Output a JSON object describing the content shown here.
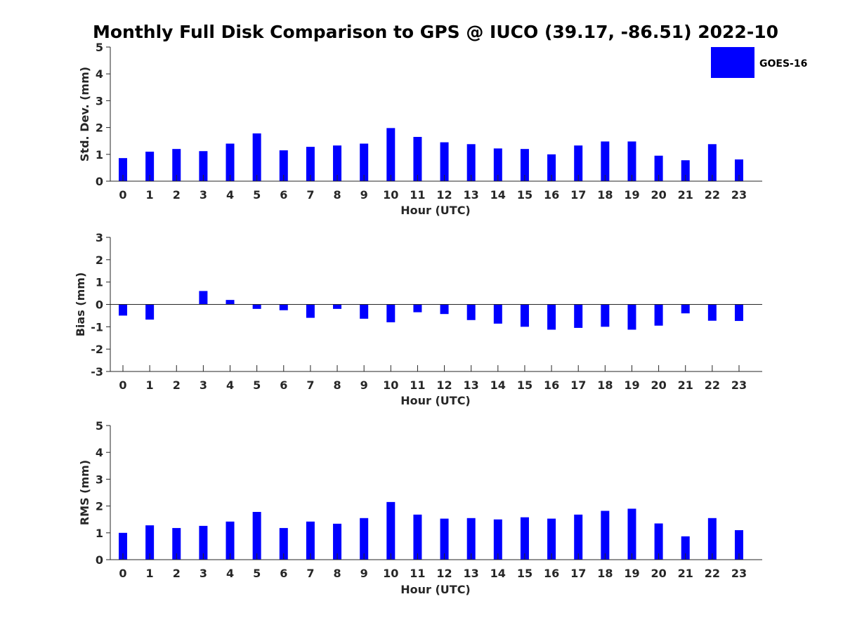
{
  "chart_data": {
    "title": "Monthly Full Disk Comparison to GPS @ IUCO (39.17, -86.51) 2022-10",
    "legend": {
      "entries": [
        "GOES-16"
      ],
      "placement": "top-right",
      "color": "#0000ff"
    },
    "bar_color": "#0000ff",
    "panels": [
      {
        "type": "bar",
        "xlabel": "Hour (UTC)",
        "ylabel": "Std. Dev. (mm)",
        "ylim": [
          0,
          5
        ],
        "yticks": [
          0,
          1,
          2,
          3,
          4,
          5
        ],
        "categories": [
          "0",
          "1",
          "2",
          "3",
          "4",
          "5",
          "6",
          "7",
          "8",
          "9",
          "10",
          "11",
          "12",
          "13",
          "14",
          "15",
          "16",
          "17",
          "18",
          "19",
          "20",
          "21",
          "22",
          "23"
        ],
        "series": [
          {
            "name": "GOES-16",
            "values": [
              0.86,
              1.1,
              1.2,
              1.12,
              1.4,
              1.78,
              1.15,
              1.28,
              1.33,
              1.4,
              1.98,
              1.65,
              1.45,
              1.38,
              1.22,
              1.2,
              1.0,
              1.33,
              1.48,
              1.48,
              0.95,
              0.78,
              1.38,
              0.81
            ]
          }
        ]
      },
      {
        "type": "bar",
        "xlabel": "Hour (UTC)",
        "ylabel": "Bias (mm)",
        "ylim": [
          -3,
          3
        ],
        "yticks": [
          -3,
          -2,
          -1,
          0,
          1,
          2,
          3
        ],
        "categories": [
          "0",
          "1",
          "2",
          "3",
          "4",
          "5",
          "6",
          "7",
          "8",
          "9",
          "10",
          "11",
          "12",
          "13",
          "14",
          "15",
          "16",
          "17",
          "18",
          "19",
          "20",
          "21",
          "22",
          "23"
        ],
        "series": [
          {
            "name": "GOES-16",
            "values": [
              -0.5,
              -0.68,
              0.0,
              0.6,
              0.2,
              -0.2,
              -0.26,
              -0.6,
              -0.2,
              -0.64,
              -0.8,
              -0.35,
              -0.43,
              -0.7,
              -0.86,
              -1.0,
              -1.13,
              -1.05,
              -1.0,
              -1.13,
              -0.95,
              -0.4,
              -0.73,
              -0.74
            ]
          }
        ]
      },
      {
        "type": "bar",
        "xlabel": "Hour (UTC)",
        "ylabel": "RMS (mm)",
        "ylim": [
          0,
          5
        ],
        "yticks": [
          0,
          1,
          2,
          3,
          4,
          5
        ],
        "categories": [
          "0",
          "1",
          "2",
          "3",
          "4",
          "5",
          "6",
          "7",
          "8",
          "9",
          "10",
          "11",
          "12",
          "13",
          "14",
          "15",
          "16",
          "17",
          "18",
          "19",
          "20",
          "21",
          "22",
          "23"
        ],
        "series": [
          {
            "name": "GOES-16",
            "values": [
              1.0,
              1.28,
              1.18,
              1.26,
              1.42,
              1.78,
              1.18,
              1.42,
              1.34,
              1.55,
              2.15,
              1.68,
              1.53,
              1.55,
              1.5,
              1.58,
              1.53,
              1.68,
              1.82,
              1.9,
              1.35,
              0.87,
              1.55,
              1.1
            ]
          }
        ]
      }
    ]
  }
}
